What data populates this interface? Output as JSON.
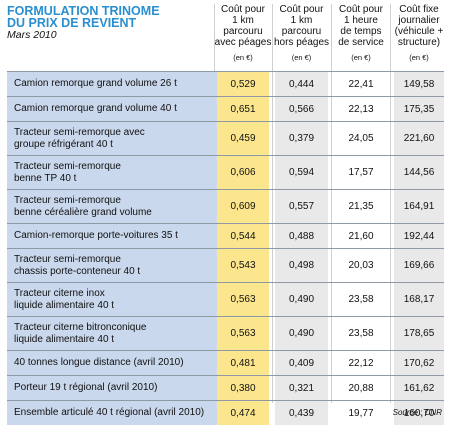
{
  "title_lines": [
    "FORMULATION TRINOME",
    "DU PRIX DE REVIENT"
  ],
  "subtitle": "Mars 2010",
  "source": "Source : CNR",
  "colors": {
    "title": "#2a8fd0",
    "label_bg": "#c9d8ec",
    "col1_bg": "#fbe68e",
    "gray_bg": "#e9e9e9"
  },
  "columns": [
    {
      "lines": [
        "Coût pour",
        "1 km",
        "parcouru",
        "avec péages"
      ],
      "unit": "(en €)"
    },
    {
      "lines": [
        "Coût pour",
        "1 km",
        "parcouru",
        "hors péages"
      ],
      "unit": "(en €)"
    },
    {
      "lines": [
        "Coût pour",
        "1 heure",
        "de temps",
        "de service"
      ],
      "unit": "(en €)"
    },
    {
      "lines": [
        "Coût fixe",
        "journalier",
        "(véhicule +",
        "structure)"
      ],
      "unit": "(en €)"
    }
  ],
  "chart_data": {
    "type": "table",
    "title": "FORMULATION TRINOME DU PRIX DE REVIENT",
    "subtitle": "Mars 2010",
    "rows": [
      {
        "label": [
          "Camion remorque grand volume 26 t"
        ],
        "values": [
          "0,529",
          "0,444",
          "22,41",
          "149,58"
        ]
      },
      {
        "label": [
          "Camion remorque grand volume 40 t"
        ],
        "values": [
          "0,651",
          "0,566",
          "22,13",
          "175,35"
        ]
      },
      {
        "label": [
          "Tracteur semi-remorque avec",
          "groupe réfrigérant 40 t"
        ],
        "values": [
          "0,459",
          "0,379",
          "24,05",
          "221,60"
        ]
      },
      {
        "label": [
          "Tracteur semi-remorque",
          "benne TP 40 t"
        ],
        "values": [
          "0,606",
          "0,594",
          "17,57",
          "144,56"
        ]
      },
      {
        "label": [
          "Tracteur semi-remorque",
          "benne céréalière grand volume"
        ],
        "values": [
          "0,609",
          "0,557",
          "21,35",
          "164,91"
        ]
      },
      {
        "label": [
          "Camion-remorque porte-voitures 35 t"
        ],
        "values": [
          "0,544",
          "0,488",
          "21,60",
          "192,44"
        ]
      },
      {
        "label": [
          "Tracteur semi-remorque",
          "chassis porte-conteneur 40 t"
        ],
        "values": [
          "0,543",
          "0,498",
          "20,03",
          "169,66"
        ]
      },
      {
        "label": [
          "Tracteur citerne inox",
          "liquide alimentaire 40 t"
        ],
        "values": [
          "0,563",
          "0,490",
          "23,58",
          "168,17"
        ]
      },
      {
        "label": [
          "Tracteur citerne bitronconique",
          "liquide alimentaire 40 t"
        ],
        "values": [
          "0,563",
          "0,490",
          "23,58",
          "178,65"
        ]
      },
      {
        "label": [
          "40 tonnes longue distance (avril 2010)"
        ],
        "values": [
          "0,481",
          "0,409",
          "22,12",
          "170,62"
        ]
      },
      {
        "label": [
          "Porteur 19 t régional (avril 2010)"
        ],
        "values": [
          "0,380",
          "0,321",
          "20,88",
          "161,62"
        ]
      },
      {
        "label": [
          "Ensemble articulé 40 t régional (avril  2010)"
        ],
        "values": [
          "0,474",
          "0,439",
          "19,77",
          "160,70"
        ]
      }
    ]
  }
}
